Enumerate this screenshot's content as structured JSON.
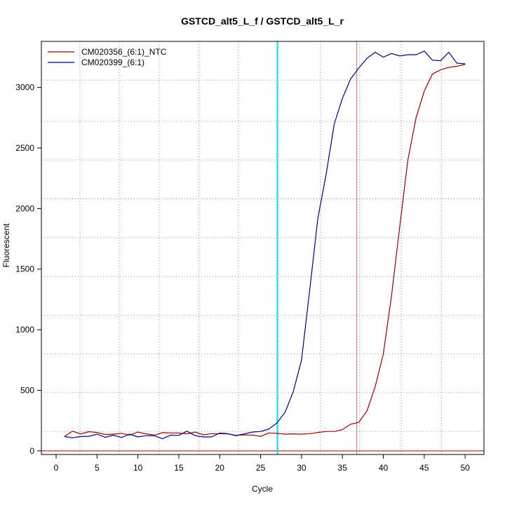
{
  "chart_data": {
    "type": "line",
    "title": "GSTCD_alt5_L_f / GSTCD_alt5_L_r",
    "xlabel": "Cycle",
    "ylabel": "Fluorescent",
    "xlim": [
      -1.8,
      52.3
    ],
    "ylim": [
      -30,
      3380
    ],
    "x_ticks": [
      0,
      5,
      10,
      15,
      20,
      25,
      30,
      35,
      40,
      45,
      50
    ],
    "y_ticks": [
      0,
      500,
      1000,
      1500,
      2000,
      2500,
      3000
    ],
    "grid": true,
    "legend_position": "top-left",
    "x": [
      1,
      2,
      3,
      4,
      5,
      6,
      7,
      8,
      9,
      10,
      11,
      12,
      13,
      14,
      15,
      16,
      17,
      18,
      19,
      20,
      21,
      22,
      23,
      24,
      25,
      26,
      27,
      28,
      29,
      30,
      31,
      32,
      33,
      34,
      35,
      36,
      37,
      38,
      39,
      40,
      41,
      42,
      43,
      44,
      45,
      46,
      47,
      48,
      49,
      50
    ],
    "series": [
      {
        "name": "CM020356_(6:1)_NTC",
        "color": "#990000",
        "values": [
          118,
          162,
          140,
          158,
          152,
          135,
          138,
          145,
          130,
          155,
          140,
          130,
          150,
          148,
          148,
          140,
          155,
          132,
          142,
          142,
          140,
          128,
          132,
          130,
          120,
          148,
          145,
          138,
          140,
          138,
          142,
          152,
          160,
          160,
          175,
          220,
          235,
          330,
          530,
          800,
          1280,
          1850,
          2400,
          2750,
          2970,
          3110,
          3145,
          3165,
          3175,
          3190
        ]
      },
      {
        "name": "CM020399_(6:1)",
        "color": "#000080",
        "values": [
          118,
          108,
          118,
          120,
          138,
          112,
          130,
          110,
          138,
          115,
          125,
          125,
          100,
          130,
          128,
          162,
          125,
          115,
          115,
          148,
          142,
          125,
          140,
          155,
          160,
          180,
          230,
          320,
          490,
          750,
          1330,
          1920,
          2280,
          2700,
          2910,
          3070,
          3160,
          3240,
          3290,
          3250,
          3280,
          3260,
          3270,
          3270,
          3300,
          3225,
          3220,
          3290,
          3200,
          3195
        ]
      }
    ],
    "vlines": [
      {
        "x": 27.05,
        "color": "#00e5ee"
      },
      {
        "x": 36.75,
        "color": "#e07070"
      }
    ],
    "hlines": [
      {
        "y": 0,
        "color": "#990000"
      }
    ],
    "extra_vgrid": [
      2.9,
      7.7,
      12.6,
      17.45,
      22.3,
      27.15,
      32.3,
      37.1,
      42.2,
      47.1
    ],
    "extra_hgrid": [
      160,
      480,
      800,
      1120,
      1440,
      1760,
      2080,
      2400,
      2720,
      3060
    ]
  }
}
